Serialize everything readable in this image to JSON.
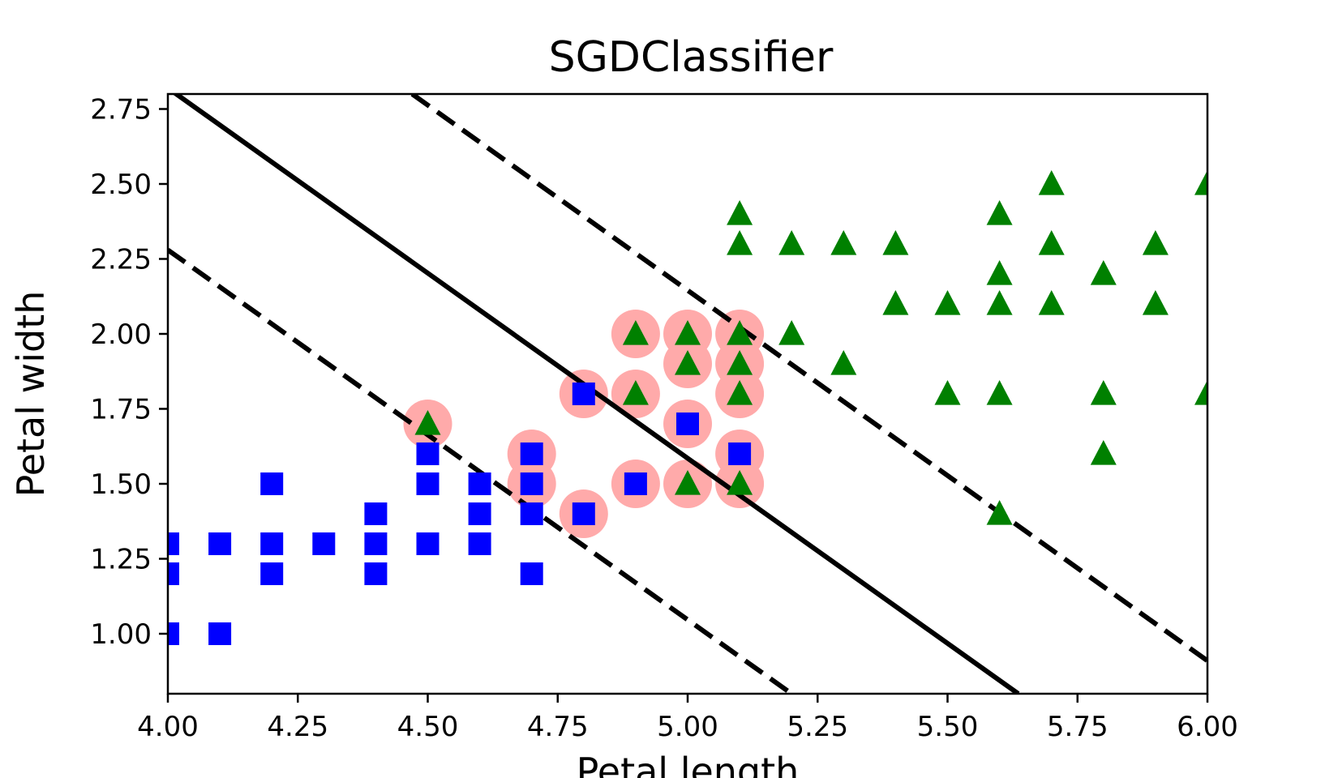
{
  "chart_data": {
    "type": "scatter",
    "title": "SGDClassifier",
    "xlabel": "Petal length",
    "ylabel": "Petal width",
    "xlim": [
      4.0,
      6.0
    ],
    "ylim": [
      0.8,
      2.8
    ],
    "xticks": [
      "4.00",
      "4.25",
      "4.50",
      "4.75",
      "5.00",
      "5.25",
      "5.50",
      "5.75",
      "6.00"
    ],
    "yticks": [
      "1.00",
      "1.25",
      "1.50",
      "1.75",
      "2.00",
      "2.25",
      "2.50",
      "2.75"
    ],
    "grid": false,
    "series": [
      {
        "marker": "square",
        "color": "#0000ff",
        "points": [
          [
            4.0,
            1.0
          ],
          [
            4.1,
            1.0
          ],
          [
            4.0,
            1.2
          ],
          [
            4.0,
            1.3
          ],
          [
            4.1,
            1.3
          ],
          [
            4.2,
            1.2
          ],
          [
            4.2,
            1.3
          ],
          [
            4.2,
            1.5
          ],
          [
            4.3,
            1.3
          ],
          [
            4.4,
            1.2
          ],
          [
            4.4,
            1.3
          ],
          [
            4.4,
            1.4
          ],
          [
            4.5,
            1.3
          ],
          [
            4.5,
            1.5
          ],
          [
            4.5,
            1.6
          ],
          [
            4.6,
            1.3
          ],
          [
            4.6,
            1.4
          ],
          [
            4.6,
            1.5
          ],
          [
            4.7,
            1.2
          ],
          [
            4.7,
            1.4
          ],
          [
            4.7,
            1.5
          ],
          [
            4.7,
            1.6
          ],
          [
            4.8,
            1.4
          ],
          [
            4.8,
            1.8
          ],
          [
            4.9,
            1.5
          ],
          [
            5.0,
            1.7
          ],
          [
            5.1,
            1.6
          ]
        ]
      },
      {
        "marker": "triangle",
        "color": "#008000",
        "points": [
          [
            4.5,
            1.7
          ],
          [
            4.9,
            1.8
          ],
          [
            4.9,
            2.0
          ],
          [
            5.0,
            1.5
          ],
          [
            5.0,
            1.9
          ],
          [
            5.0,
            2.0
          ],
          [
            5.1,
            1.5
          ],
          [
            5.1,
            1.8
          ],
          [
            5.1,
            1.9
          ],
          [
            5.1,
            2.0
          ],
          [
            5.1,
            2.3
          ],
          [
            5.1,
            2.4
          ],
          [
            5.2,
            2.0
          ],
          [
            5.2,
            2.3
          ],
          [
            5.3,
            1.9
          ],
          [
            5.3,
            2.3
          ],
          [
            5.4,
            2.1
          ],
          [
            5.4,
            2.3
          ],
          [
            5.5,
            1.8
          ],
          [
            5.5,
            2.1
          ],
          [
            5.6,
            1.4
          ],
          [
            5.6,
            1.8
          ],
          [
            5.6,
            2.1
          ],
          [
            5.6,
            2.2
          ],
          [
            5.6,
            2.4
          ],
          [
            5.7,
            2.1
          ],
          [
            5.7,
            2.3
          ],
          [
            5.7,
            2.5
          ],
          [
            5.8,
            1.6
          ],
          [
            5.8,
            1.8
          ],
          [
            5.8,
            2.2
          ],
          [
            5.9,
            2.1
          ],
          [
            5.9,
            2.3
          ],
          [
            6.0,
            1.8
          ],
          [
            6.0,
            2.5
          ]
        ]
      }
    ],
    "support_vectors": {
      "color": "#ffaaaa",
      "points": [
        [
          4.5,
          1.7
        ],
        [
          4.7,
          1.5
        ],
        [
          4.7,
          1.6
        ],
        [
          4.8,
          1.4
        ],
        [
          4.8,
          1.8
        ],
        [
          4.9,
          1.5
        ],
        [
          4.9,
          1.8
        ],
        [
          4.9,
          2.0
        ],
        [
          5.0,
          1.5
        ],
        [
          5.0,
          1.7
        ],
        [
          5.0,
          1.9
        ],
        [
          5.0,
          2.0
        ],
        [
          5.1,
          1.5
        ],
        [
          5.1,
          1.6
        ],
        [
          5.1,
          1.8
        ],
        [
          5.1,
          1.9
        ],
        [
          5.1,
          2.0
        ]
      ]
    },
    "lines": [
      {
        "style": "solid",
        "points": [
          [
            4.0,
            2.82
          ],
          [
            5.636,
            0.8
          ]
        ]
      },
      {
        "style": "dashed",
        "points": [
          [
            4.0,
            2.28
          ],
          [
            5.2,
            0.8
          ]
        ]
      },
      {
        "style": "dashed",
        "points": [
          [
            4.47,
            2.8
          ],
          [
            6.0,
            0.91
          ]
        ]
      }
    ]
  }
}
